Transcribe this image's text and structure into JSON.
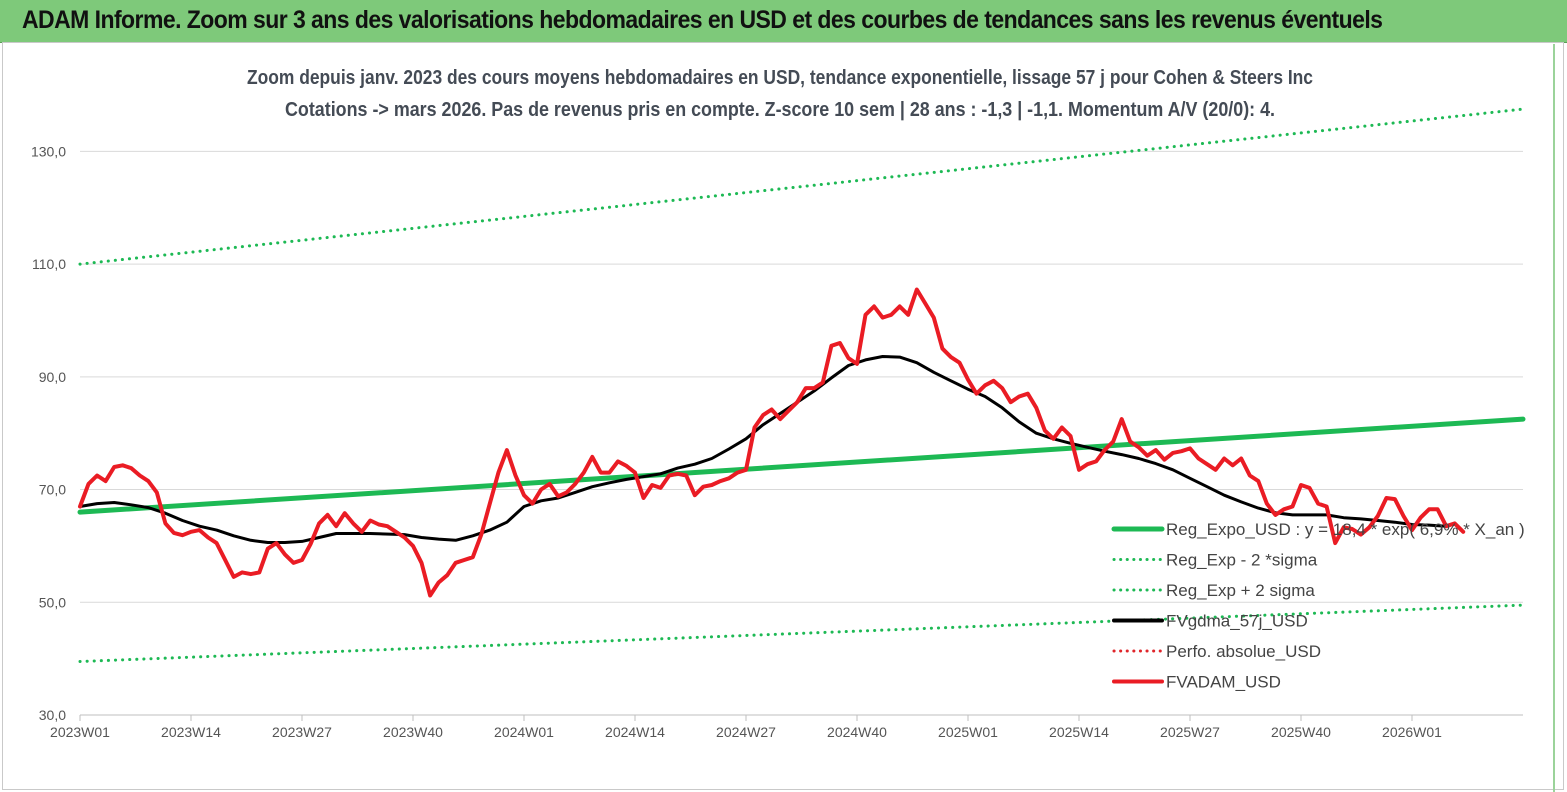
{
  "header": {
    "title": "ADAM Informe. Zoom sur 3 ans des valorisations hebdomadaires en USD et des courbes de tendances sans les revenus éventuels"
  },
  "chart_data": {
    "type": "line",
    "subtitle_line1": "Zoom depuis janv. 2023 des cours moyens hebdomadaires en USD, tendance exponentielle, lissage 57 j pour Cohen & Steers Inc",
    "subtitle_line2": "Cotations -> mars 2026. Pas de revenus pris en  compte. Z-score 10 sem  | 28 ans : -1,3 | -1,1. Momentum A/V (20/0): 4.",
    "xlabel": "",
    "ylabel": "",
    "ylim": [
      30,
      140
    ],
    "yticks": [
      30,
      50,
      70,
      90,
      110,
      130
    ],
    "ytick_labels": [
      "30,0",
      "50,0",
      "70,0",
      "90,0",
      "110,0",
      "130,0"
    ],
    "xlim": [
      0,
      169
    ],
    "xtick_positions": [
      0,
      13,
      26,
      39,
      52,
      65,
      78,
      91,
      104,
      117,
      130,
      143,
      156
    ],
    "xtick_labels": [
      "2023W01",
      "2023W14",
      "2023W27",
      "2023W40",
      "2024W01",
      "2024W14",
      "2024W27",
      "2024W40",
      "2025W01",
      "2025W14",
      "2025W27",
      "2025W40",
      "2026W01"
    ],
    "grid": "horizontal",
    "legend_position": "bottom-right",
    "series": [
      {
        "name": "Reg_Expo_USD : y = 18,4 * exp( 6,9% * X_an )",
        "color": "#1db954",
        "style": "solid",
        "width": 5,
        "points": [
          [
            0,
            66.0
          ],
          [
            169,
            82.5
          ]
        ]
      },
      {
        "name": "Reg_Exp - 2 *sigma",
        "color": "#1db954",
        "style": "dotted",
        "width": 3,
        "points": [
          [
            0,
            39.5
          ],
          [
            169,
            49.5
          ]
        ]
      },
      {
        "name": "Reg_Exp + 2 sigma",
        "color": "#1db954",
        "style": "dotted",
        "width": 3,
        "points": [
          [
            0,
            110.0
          ],
          [
            169,
            137.5
          ]
        ]
      },
      {
        "name": "FVgdma_57j_USD",
        "color": "#000000",
        "style": "solid",
        "width": 3,
        "points": [
          [
            0,
            67.0
          ],
          [
            2,
            67.5
          ],
          [
            4,
            67.7
          ],
          [
            6,
            67.3
          ],
          [
            8,
            66.8
          ],
          [
            10,
            65.8
          ],
          [
            12,
            64.5
          ],
          [
            14,
            63.5
          ],
          [
            16,
            62.8
          ],
          [
            18,
            61.8
          ],
          [
            20,
            61.0
          ],
          [
            22,
            60.6
          ],
          [
            24,
            60.6
          ],
          [
            26,
            60.8
          ],
          [
            28,
            61.5
          ],
          [
            30,
            62.2
          ],
          [
            34,
            62.2
          ],
          [
            38,
            62.0
          ],
          [
            40,
            61.5
          ],
          [
            42,
            61.2
          ],
          [
            44,
            61.0
          ],
          [
            46,
            61.8
          ],
          [
            48,
            62.8
          ],
          [
            50,
            64.2
          ],
          [
            52,
            67.0
          ],
          [
            54,
            68.0
          ],
          [
            56,
            68.5
          ],
          [
            58,
            69.5
          ],
          [
            60,
            70.5
          ],
          [
            62,
            71.2
          ],
          [
            64,
            71.8
          ],
          [
            66,
            72.3
          ],
          [
            68,
            72.8
          ],
          [
            70,
            73.8
          ],
          [
            72,
            74.5
          ],
          [
            74,
            75.5
          ],
          [
            76,
            77.2
          ],
          [
            78,
            79.0
          ],
          [
            80,
            81.5
          ],
          [
            82,
            83.5
          ],
          [
            84,
            85.5
          ],
          [
            86,
            87.5
          ],
          [
            88,
            89.8
          ],
          [
            90,
            92.0
          ],
          [
            92,
            93.0
          ],
          [
            94,
            93.6
          ],
          [
            96,
            93.5
          ],
          [
            98,
            92.5
          ],
          [
            100,
            90.8
          ],
          [
            102,
            89.3
          ],
          [
            104,
            87.8
          ],
          [
            106,
            86.5
          ],
          [
            108,
            84.5
          ],
          [
            110,
            82.0
          ],
          [
            112,
            80.0
          ],
          [
            114,
            79.0
          ],
          [
            116,
            78.2
          ],
          [
            118,
            77.5
          ],
          [
            120,
            76.8
          ],
          [
            122,
            76.2
          ],
          [
            124,
            75.5
          ],
          [
            126,
            74.6
          ],
          [
            128,
            73.5
          ],
          [
            130,
            72.0
          ],
          [
            132,
            70.5
          ],
          [
            134,
            69.0
          ],
          [
            136,
            67.8
          ],
          [
            138,
            66.7
          ],
          [
            140,
            65.9
          ],
          [
            142,
            65.5
          ],
          [
            144,
            65.5
          ],
          [
            146,
            65.5
          ],
          [
            148,
            65.0
          ],
          [
            150,
            64.8
          ],
          [
            152,
            64.5
          ],
          [
            154,
            64.2
          ],
          [
            156,
            63.8
          ],
          [
            158,
            63.7
          ],
          [
            160,
            63.5
          ]
        ]
      },
      {
        "name": "Perfo. absolue_USD",
        "color": "#e0262b",
        "style": "dotted",
        "width": 3,
        "points": []
      },
      {
        "name": "FVADAM_USD",
        "color": "#ea1c24",
        "style": "solid",
        "width": 4,
        "points": [
          [
            0,
            67.0
          ],
          [
            1,
            71.0
          ],
          [
            2,
            72.5
          ],
          [
            3,
            71.5
          ],
          [
            4,
            74.0
          ],
          [
            5,
            74.3
          ],
          [
            6,
            73.8
          ],
          [
            7,
            72.5
          ],
          [
            8,
            71.5
          ],
          [
            9,
            69.5
          ],
          [
            10,
            64.0
          ],
          [
            11,
            62.3
          ],
          [
            12,
            61.9
          ],
          [
            13,
            62.5
          ],
          [
            14,
            62.8
          ],
          [
            15,
            61.5
          ],
          [
            16,
            60.5
          ],
          [
            17,
            57.5
          ],
          [
            18,
            54.5
          ],
          [
            19,
            55.3
          ],
          [
            20,
            55.0
          ],
          [
            21,
            55.3
          ],
          [
            22,
            59.5
          ],
          [
            23,
            60.5
          ],
          [
            24,
            58.5
          ],
          [
            25,
            57.0
          ],
          [
            26,
            57.5
          ],
          [
            27,
            60.3
          ],
          [
            28,
            64.0
          ],
          [
            29,
            65.5
          ],
          [
            30,
            63.5
          ],
          [
            31,
            65.8
          ],
          [
            32,
            64.0
          ],
          [
            33,
            62.5
          ],
          [
            34,
            64.5
          ],
          [
            35,
            63.8
          ],
          [
            36,
            63.5
          ],
          [
            37,
            62.5
          ],
          [
            38,
            61.5
          ],
          [
            39,
            60.0
          ],
          [
            40,
            57.0
          ],
          [
            41,
            51.2
          ],
          [
            42,
            53.5
          ],
          [
            43,
            54.8
          ],
          [
            44,
            57.0
          ],
          [
            45,
            57.5
          ],
          [
            46,
            58.0
          ],
          [
            47,
            62.0
          ],
          [
            48,
            67.5
          ],
          [
            49,
            73.0
          ],
          [
            50,
            77.0
          ],
          [
            51,
            72.5
          ],
          [
            52,
            69.0
          ],
          [
            53,
            67.5
          ],
          [
            54,
            70.0
          ],
          [
            55,
            71.0
          ],
          [
            56,
            68.8
          ],
          [
            57,
            69.5
          ],
          [
            58,
            71.0
          ],
          [
            59,
            73.0
          ],
          [
            60,
            75.8
          ],
          [
            61,
            73.0
          ],
          [
            62,
            73.0
          ],
          [
            63,
            75.0
          ],
          [
            64,
            74.2
          ],
          [
            65,
            73.0
          ],
          [
            66,
            68.5
          ],
          [
            67,
            70.8
          ],
          [
            68,
            70.3
          ],
          [
            69,
            72.5
          ],
          [
            70,
            72.8
          ],
          [
            71,
            72.5
          ],
          [
            72,
            69.0
          ],
          [
            73,
            70.5
          ],
          [
            74,
            70.8
          ],
          [
            75,
            71.5
          ],
          [
            76,
            72.0
          ],
          [
            77,
            73.0
          ],
          [
            78,
            73.5
          ],
          [
            79,
            81.0
          ],
          [
            80,
            83.2
          ],
          [
            81,
            84.2
          ],
          [
            82,
            82.5
          ],
          [
            83,
            84.0
          ],
          [
            84,
            85.5
          ],
          [
            85,
            88.0
          ],
          [
            86,
            88.0
          ],
          [
            87,
            89.0
          ],
          [
            88,
            95.5
          ],
          [
            89,
            96.0
          ],
          [
            90,
            93.3
          ],
          [
            91,
            92.3
          ],
          [
            92,
            101.0
          ],
          [
            93,
            102.5
          ],
          [
            94,
            100.5
          ],
          [
            95,
            101.0
          ],
          [
            96,
            102.5
          ],
          [
            97,
            101.0
          ],
          [
            98,
            105.5
          ],
          [
            99,
            103.0
          ],
          [
            100,
            100.5
          ],
          [
            101,
            95.0
          ],
          [
            102,
            93.5
          ],
          [
            103,
            92.5
          ],
          [
            104,
            89.5
          ],
          [
            105,
            87.0
          ],
          [
            106,
            88.5
          ],
          [
            107,
            89.3
          ],
          [
            108,
            88.0
          ],
          [
            109,
            85.5
          ],
          [
            110,
            86.5
          ],
          [
            111,
            87.0
          ],
          [
            112,
            84.5
          ],
          [
            113,
            80.5
          ],
          [
            114,
            79.0
          ],
          [
            115,
            81.0
          ],
          [
            116,
            79.5
          ],
          [
            117,
            73.5
          ],
          [
            118,
            74.5
          ],
          [
            119,
            75.0
          ],
          [
            120,
            77.0
          ],
          [
            121,
            78.5
          ],
          [
            122,
            82.5
          ],
          [
            123,
            78.5
          ],
          [
            124,
            77.5
          ],
          [
            125,
            76.0
          ],
          [
            126,
            77.0
          ],
          [
            127,
            75.3
          ],
          [
            128,
            76.5
          ],
          [
            129,
            76.8
          ],
          [
            130,
            77.3
          ],
          [
            131,
            75.5
          ],
          [
            132,
            74.5
          ],
          [
            133,
            73.5
          ],
          [
            134,
            75.5
          ],
          [
            135,
            74.3
          ],
          [
            136,
            75.5
          ],
          [
            137,
            72.5
          ],
          [
            138,
            71.5
          ],
          [
            139,
            67.5
          ],
          [
            140,
            65.5
          ],
          [
            141,
            66.5
          ],
          [
            142,
            67.0
          ],
          [
            143,
            70.8
          ],
          [
            144,
            70.3
          ],
          [
            145,
            67.5
          ],
          [
            146,
            67.0
          ],
          [
            147,
            60.5
          ],
          [
            148,
            63.3
          ],
          [
            149,
            63.0
          ],
          [
            150,
            62.0
          ],
          [
            151,
            63.3
          ],
          [
            152,
            65.3
          ],
          [
            153,
            68.5
          ],
          [
            154,
            68.3
          ],
          [
            155,
            65.3
          ],
          [
            156,
            62.8
          ],
          [
            157,
            65.0
          ],
          [
            158,
            66.5
          ],
          [
            159,
            66.5
          ],
          [
            160,
            63.5
          ],
          [
            161,
            64.0
          ],
          [
            162,
            62.5
          ]
        ]
      }
    ]
  }
}
